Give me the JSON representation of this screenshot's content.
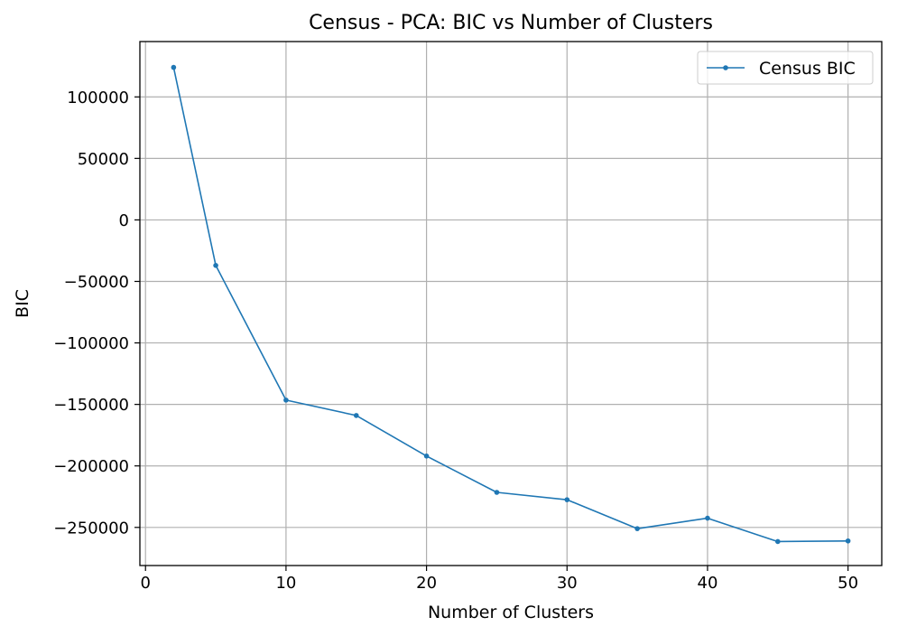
{
  "chart_data": {
    "type": "line",
    "title": "Census - PCA: BIC vs Number of Clusters",
    "xlabel": "Number of Clusters",
    "ylabel": "BIC",
    "xlim": [
      -0.4,
      52.4
    ],
    "ylim": [
      -281000,
      145000
    ],
    "xticks": [
      0,
      10,
      20,
      30,
      40,
      50
    ],
    "xtick_labels": [
      "0",
      "10",
      "20",
      "30",
      "40",
      "50"
    ],
    "yticks": [
      100000,
      50000,
      0,
      -50000,
      -100000,
      -150000,
      -200000,
      -250000
    ],
    "ytick_labels": [
      "100000",
      "50000",
      "0",
      "−50000",
      "−100000",
      "−150000",
      "−200000",
      "−250000"
    ],
    "grid": true,
    "legend_position": "top-right",
    "series": [
      {
        "name": "Census BIC",
        "color": "#1f77b4",
        "marker": "dot",
        "x": [
          2,
          5,
          10,
          15,
          20,
          25,
          30,
          35,
          40,
          45,
          50
        ],
        "y": [
          124000,
          -37000,
          -146500,
          -159000,
          -192000,
          -221500,
          -227500,
          -251000,
          -242500,
          -261500,
          -261000
        ]
      }
    ]
  }
}
